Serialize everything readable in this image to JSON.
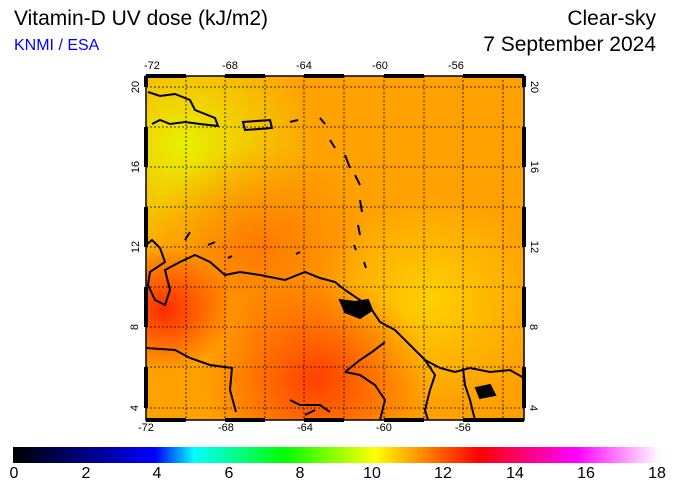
{
  "header": {
    "title": "Vitamin-D UV dose (kJ/m2)",
    "credit": "KNMI / ESA",
    "mode": "Clear-sky",
    "date": "7 September 2024"
  },
  "map": {
    "lon_ticks": [
      "-72",
      "-68",
      "-64",
      "-60",
      "-56"
    ],
    "lat_ticks": [
      "20",
      "16",
      "12",
      "8",
      "4"
    ],
    "region": "Caribbean / northern South America",
    "colors": {
      "background": "#ffa500",
      "land_line": "#000000"
    }
  },
  "colorbar": {
    "labels": [
      "0",
      "2",
      "4",
      "6",
      "8",
      "10",
      "12",
      "14",
      "16",
      "18"
    ],
    "min": 0,
    "max": 18,
    "unit": "kJ/m2"
  }
}
